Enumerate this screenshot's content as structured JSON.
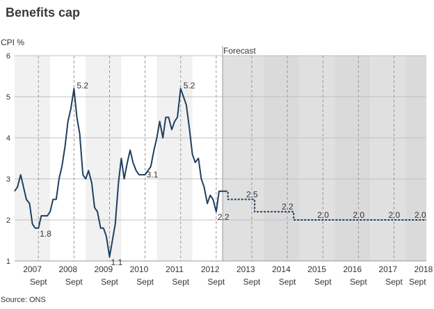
{
  "title": "Benefits cap",
  "source": "Source: ONS",
  "chart_data": {
    "type": "line",
    "title": "Benefits cap",
    "ylabel": "CPI %",
    "ylim": [
      1,
      6
    ],
    "yticks": [
      1,
      2,
      3,
      4,
      5,
      6
    ],
    "xlim": [
      2007.0,
      2018.58
    ],
    "forecast_label": "Forecast",
    "forecast_start": 2012.85,
    "year_labels": [
      "2007",
      "2008",
      "2009",
      "2010",
      "2011",
      "2012",
      "2013",
      "2014",
      "2015",
      "2016",
      "2017",
      "2018"
    ],
    "sept_label": "Sept",
    "sept_marks": [
      2007.67,
      2008.67,
      2009.67,
      2010.67,
      2011.67,
      2012.67,
      2013.67,
      2014.67,
      2015.67,
      2016.67,
      2017.67,
      2018.67
    ],
    "series": [
      {
        "style": "solid",
        "color": "#1f3f5f",
        "x": [
          2007.0,
          2007.08,
          2007.17,
          2007.25,
          2007.33,
          2007.42,
          2007.5,
          2007.58,
          2007.67,
          2007.75,
          2007.83,
          2007.92,
          2008.0,
          2008.08,
          2008.17,
          2008.25,
          2008.33,
          2008.42,
          2008.5,
          2008.58,
          2008.67,
          2008.75,
          2008.83,
          2008.92,
          2009.0,
          2009.08,
          2009.17,
          2009.25,
          2009.33,
          2009.42,
          2009.5,
          2009.58,
          2009.67,
          2009.75,
          2009.83,
          2009.92,
          2010.0,
          2010.08,
          2010.17,
          2010.25,
          2010.33,
          2010.42,
          2010.5,
          2010.58,
          2010.67,
          2010.75,
          2010.83,
          2010.92,
          2011.0,
          2011.08,
          2011.17,
          2011.25,
          2011.33,
          2011.42,
          2011.5,
          2011.58,
          2011.67,
          2011.75,
          2011.83,
          2011.92,
          2012.0,
          2012.08,
          2012.17,
          2012.25,
          2012.33,
          2012.42,
          2012.5,
          2012.58,
          2012.67,
          2012.75,
          2012.83,
          2012.92
        ],
        "values": [
          2.7,
          2.8,
          3.1,
          2.8,
          2.5,
          2.4,
          1.9,
          1.8,
          1.8,
          2.1,
          2.1,
          2.1,
          2.2,
          2.5,
          2.5,
          3.0,
          3.3,
          3.8,
          4.4,
          4.7,
          5.2,
          4.5,
          4.1,
          3.1,
          3.0,
          3.2,
          2.9,
          2.3,
          2.2,
          1.8,
          1.8,
          1.6,
          1.1,
          1.5,
          1.9,
          2.9,
          3.5,
          3.0,
          3.4,
          3.7,
          3.4,
          3.2,
          3.1,
          3.1,
          3.1,
          3.2,
          3.3,
          3.7,
          4.0,
          4.4,
          4.0,
          4.5,
          4.5,
          4.2,
          4.4,
          4.5,
          5.2,
          5.0,
          4.8,
          4.2,
          3.6,
          3.4,
          3.5,
          3.0,
          2.8,
          2.4,
          2.6,
          2.5,
          2.2,
          2.7,
          2.7,
          2.7
        ]
      },
      {
        "style": "dashed",
        "color": "#1f3f5f",
        "x": [
          2012.92,
          2013.0,
          2013.0,
          2013.75,
          2013.75,
          2014.85,
          2014.85,
          2018.58
        ],
        "values": [
          2.7,
          2.7,
          2.5,
          2.5,
          2.2,
          2.2,
          2.0,
          2.0
        ]
      }
    ],
    "annotations": [
      {
        "text": "1.8",
        "x": 2007.67,
        "y": 1.8
      },
      {
        "text": "5.2",
        "x": 2008.67,
        "y": 5.2
      },
      {
        "text": "1.1",
        "x": 2009.67,
        "y": 1.1
      },
      {
        "text": "3.1",
        "x": 2010.67,
        "y": 3.1
      },
      {
        "text": "5.2",
        "x": 2011.67,
        "y": 5.2
      },
      {
        "text": "2.2",
        "x": 2012.67,
        "y": 2.2
      },
      {
        "text": "2.5",
        "x": 2013.67,
        "y": 2.5
      },
      {
        "text": "2.2",
        "x": 2014.67,
        "y": 2.2
      },
      {
        "text": "2.0",
        "x": 2015.67,
        "y": 2.0
      },
      {
        "text": "2.0",
        "x": 2016.67,
        "y": 2.0
      },
      {
        "text": "2.0",
        "x": 2017.67,
        "y": 2.0
      }
    ],
    "colors": {
      "band_light": "#f1f1f1",
      "band_white": "#ffffff",
      "forecast_light": "#e0e0e0",
      "forecast_dark": "#dadada",
      "line": "#1f3f5f",
      "sept_line": "#999999",
      "grid": "#c0c0c0"
    },
    "grid": true
  }
}
